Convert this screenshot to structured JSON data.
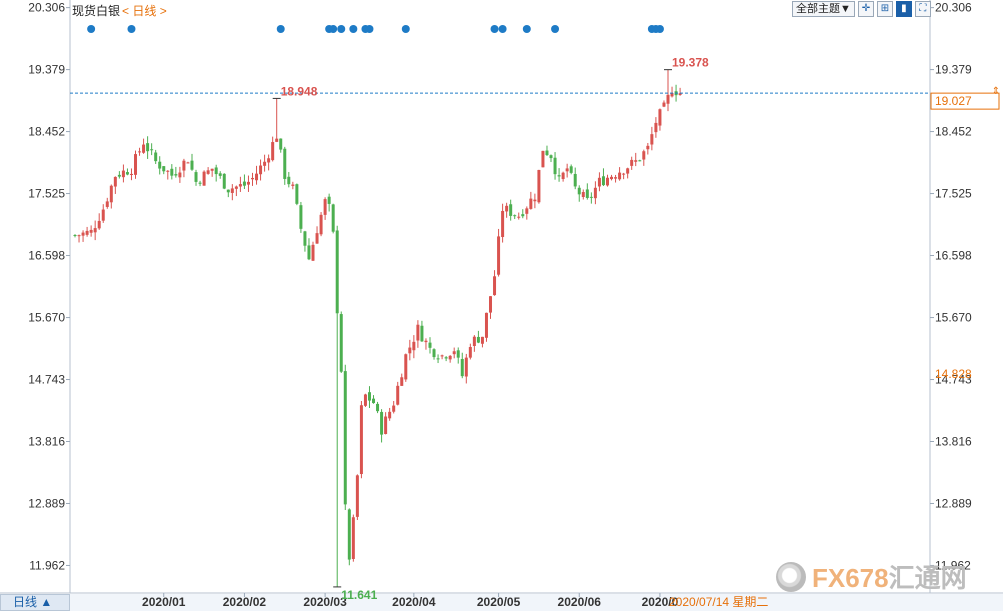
{
  "instrument": "现货白银",
  "period_tag": "< 日线 >",
  "period_tab": "日线 ▲",
  "toolbar": {
    "theme_button": "全部主题▼",
    "icons": [
      "crosshair-icon",
      "grid-icon",
      "candlestick-icon",
      "fullscreen-icon"
    ]
  },
  "watermark": {
    "prefix": "FX678",
    "suffix": "汇通网"
  },
  "colors": {
    "up": "#d9534f",
    "down": "#4caf50",
    "marker": "#1e7bc6",
    "price_line": "#1e7bc6",
    "orange": "#e6700a"
  },
  "chart_data": {
    "type": "candlestick",
    "y_ticks": [
      20.306,
      19.379,
      18.452,
      17.525,
      16.598,
      15.67,
      14.743,
      13.816,
      12.889,
      11.962
    ],
    "y_ticks_labels": [
      "20.306",
      "19.379",
      "18.452",
      "17.525",
      "16.598",
      "15.670",
      "14.743",
      "13.816",
      "12.889",
      "11.962"
    ],
    "ylim": [
      11.55,
      20.42
    ],
    "x_labels": [
      "2020/01",
      "2020/02",
      "2020/03",
      "2020/04",
      "2020/05",
      "2020/06",
      "2020/0"
    ],
    "x_label_positions": [
      22,
      42,
      62,
      84,
      105,
      125,
      145
    ],
    "num_bars": 151,
    "high_annotation": {
      "label": "19.378",
      "value": 19.378,
      "index": 147
    },
    "prior_high_annotation": {
      "label": "18.948",
      "value": 18.948,
      "index": 50
    },
    "low_annotation": {
      "label": "11.641",
      "value": 11.641,
      "index": 65
    },
    "current_price": {
      "label": "19.027",
      "value": 19.027
    },
    "right_orange_label": {
      "label": "14.828",
      "value": 14.828
    },
    "current_date": "2020/07/14 星期二",
    "markers": [
      4,
      14,
      51,
      63,
      64,
      66,
      69,
      72,
      73,
      82,
      104,
      106,
      112,
      119,
      143,
      144,
      145
    ]
  }
}
